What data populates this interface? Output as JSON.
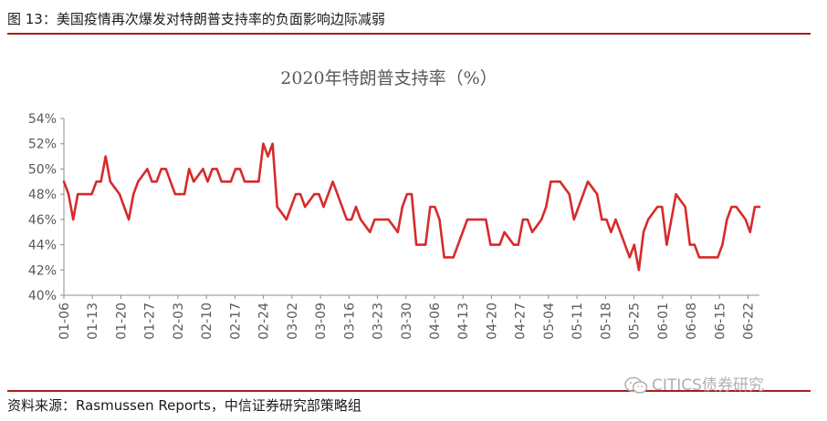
{
  "figure_title": "图 13：美国疫情再次爆发对特朗普支持率的负面影响边际减弱",
  "source_note": "资料来源：Rasmussen Reports，中信证券研究部策略组",
  "watermark": "CITICS债券研究",
  "colors": {
    "rule": "#a31f1f",
    "line": "#d62b2b",
    "axis": "#8c8c8c",
    "text": "#595959"
  },
  "chart_data": {
    "type": "line",
    "title": "2020年特朗普支持率（%）",
    "xlabel": "",
    "ylabel": "",
    "ylim": [
      40,
      54
    ],
    "y_ticks": [
      "40%",
      "42%",
      "44%",
      "46%",
      "48%",
      "50%",
      "52%",
      "54%"
    ],
    "x_ticks": [
      "01-06",
      "01-13",
      "01-20",
      "01-27",
      "02-03",
      "02-10",
      "02-17",
      "02-24",
      "03-02",
      "03-09",
      "03-16",
      "03-23",
      "03-30",
      "04-06",
      "04-13",
      "04-20",
      "04-27",
      "05-04",
      "05-11",
      "05-18",
      "05-25",
      "06-01",
      "06-08",
      "06-15",
      "06-22"
    ],
    "grid": false,
    "series": [
      {
        "values": [
          49,
          48,
          46,
          48,
          48,
          48,
          48,
          49,
          49,
          51,
          49,
          48.5,
          48,
          47,
          46,
          48,
          49,
          49.5,
          50,
          49,
          49,
          50,
          50,
          49,
          48,
          48,
          48,
          50,
          49,
          49.5,
          50,
          49,
          50,
          50,
          49,
          49,
          49,
          50,
          50,
          49,
          49,
          49,
          49,
          52,
          51,
          52,
          47,
          46.5,
          46,
          47,
          48,
          48,
          47,
          47.5,
          48,
          48,
          47,
          48,
          49,
          48,
          47,
          46,
          46,
          47,
          46,
          45.5,
          45,
          46,
          46,
          46,
          46,
          45.5,
          45,
          47,
          48,
          48,
          44,
          44,
          44,
          47,
          47,
          46,
          43,
          43,
          43,
          44,
          45,
          46,
          46,
          46,
          46,
          46,
          44,
          44,
          44,
          45,
          44.5,
          44,
          44,
          46,
          46,
          45,
          45.5,
          46,
          47,
          49,
          49,
          49,
          48.5,
          48,
          46,
          47,
          48,
          49,
          48.5,
          48,
          46,
          46,
          45,
          46,
          45,
          44,
          43,
          44,
          42,
          45,
          46,
          46.5,
          47,
          47,
          44,
          46,
          48,
          47.5,
          47,
          44,
          44,
          43,
          43,
          43,
          43,
          43,
          44,
          46,
          47,
          47,
          46.5,
          46,
          45,
          47,
          47
        ]
      }
    ]
  }
}
